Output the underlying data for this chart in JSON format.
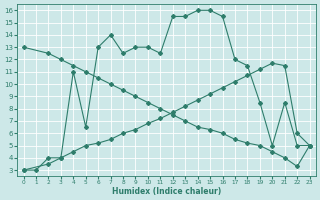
{
  "line1_x": [
    0,
    1,
    2,
    3,
    4,
    5,
    6,
    7,
    8,
    9,
    10,
    11,
    12,
    13,
    14,
    15,
    16,
    17,
    18,
    19,
    20,
    21,
    22,
    23
  ],
  "line1_y": [
    3,
    3,
    4,
    4,
    11,
    6.5,
    13,
    14,
    12.5,
    13,
    13,
    12.5,
    15.5,
    15.5,
    16,
    16,
    15.5,
    12,
    11.5,
    8.5,
    5,
    8.5,
    5,
    5
  ],
  "line2_x": [
    0,
    2,
    3,
    4,
    5,
    6,
    7,
    8,
    9,
    10,
    11,
    12,
    13,
    14,
    15,
    16,
    17,
    18,
    19,
    20,
    21,
    22,
    23
  ],
  "line2_y": [
    3,
    3.5,
    4,
    4.5,
    5,
    5.2,
    5.5,
    6,
    6.3,
    6.8,
    7.2,
    7.7,
    8.2,
    8.7,
    9.2,
    9.7,
    10.2,
    10.7,
    11.2,
    11.7,
    11.5,
    6,
    5
  ],
  "line3_x": [
    0,
    2,
    3,
    4,
    5,
    6,
    7,
    8,
    9,
    10,
    11,
    12,
    13,
    14,
    15,
    16,
    17,
    18,
    19,
    20,
    21,
    22,
    23
  ],
  "line3_y": [
    13,
    12.5,
    12,
    11.5,
    11,
    10.5,
    10,
    9.5,
    9,
    8.5,
    8,
    7.5,
    7,
    6.5,
    6.3,
    6,
    5.5,
    5.2,
    5,
    4.5,
    4,
    3.3,
    5
  ],
  "line_color": "#2e7d6b",
  "bg_color": "#cde8e8",
  "grid_color": "#b0d8d8",
  "xlabel": "Humidex (Indice chaleur)",
  "xlim": [
    -0.5,
    23.5
  ],
  "ylim": [
    2.5,
    16.5
  ],
  "xticks": [
    0,
    1,
    2,
    3,
    4,
    5,
    6,
    7,
    8,
    9,
    10,
    11,
    12,
    13,
    14,
    15,
    16,
    17,
    18,
    19,
    20,
    21,
    22,
    23
  ],
  "yticks": [
    3,
    4,
    5,
    6,
    7,
    8,
    9,
    10,
    11,
    12,
    13,
    14,
    15,
    16
  ]
}
